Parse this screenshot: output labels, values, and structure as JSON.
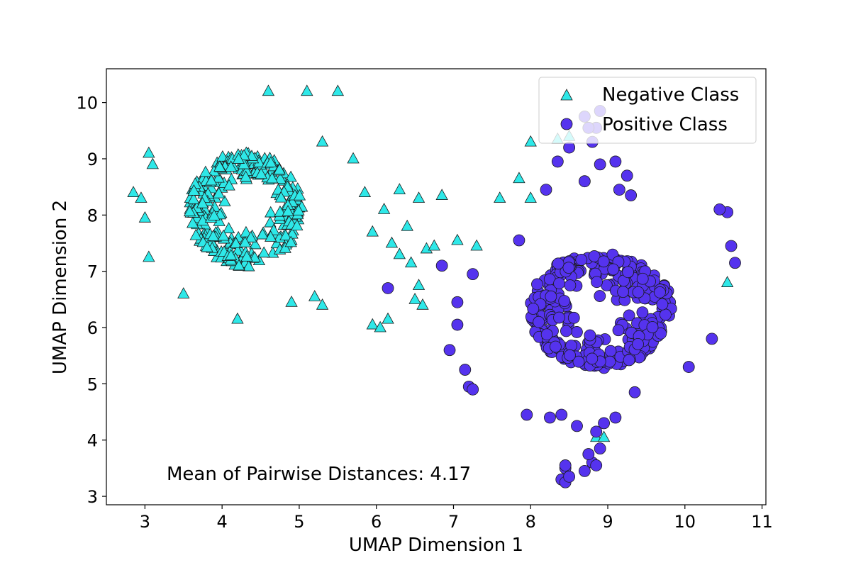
{
  "chart_data": {
    "type": "scatter",
    "title": "",
    "xlabel": "UMAP Dimension 1",
    "ylabel": "UMAP Dimension 2",
    "xlim": [
      2.5,
      11.05
    ],
    "ylim": [
      2.85,
      10.6
    ],
    "xticks": [
      3,
      4,
      5,
      6,
      7,
      8,
      9,
      10,
      11
    ],
    "yticks": [
      3,
      4,
      5,
      6,
      7,
      8,
      9,
      10
    ],
    "xtick_labels": [
      "3",
      "4",
      "5",
      "6",
      "7",
      "8",
      "9",
      "10",
      "11"
    ],
    "ytick_labels": [
      "3",
      "4",
      "5",
      "6",
      "7",
      "8",
      "9",
      "10"
    ],
    "grid": false,
    "legend_position": "top-right",
    "annotation": "Mean of Pairwise Distances: 4.17",
    "series": [
      {
        "name": "Negative Class",
        "marker": "triangle",
        "color": "#2ee8e8",
        "edge": "#1a1a1a",
        "cluster": {
          "center": [
            4.3,
            8.1
          ],
          "spread": [
            0.75,
            1.05
          ],
          "count": 300,
          "seed": 11
        },
        "extra_points": [
          [
            5.5,
            10.2
          ],
          [
            5.1,
            10.2
          ],
          [
            4.6,
            10.2
          ],
          [
            3.05,
            9.1
          ],
          [
            3.1,
            8.9
          ],
          [
            5.7,
            9.0
          ],
          [
            5.3,
            9.3
          ],
          [
            5.85,
            8.4
          ],
          [
            6.1,
            8.1
          ],
          [
            6.3,
            8.45
          ],
          [
            6.55,
            8.3
          ],
          [
            6.85,
            8.35
          ],
          [
            6.4,
            7.8
          ],
          [
            6.2,
            7.5
          ],
          [
            5.95,
            7.7
          ],
          [
            6.3,
            7.3
          ],
          [
            6.45,
            7.15
          ],
          [
            6.65,
            7.4
          ],
          [
            6.75,
            7.45
          ],
          [
            6.55,
            6.75
          ],
          [
            6.6,
            6.4
          ],
          [
            6.15,
            6.15
          ],
          [
            5.95,
            6.05
          ],
          [
            6.05,
            6.0
          ],
          [
            6.5,
            6.5
          ],
          [
            7.05,
            7.55
          ],
          [
            7.3,
            7.45
          ],
          [
            7.6,
            8.3
          ],
          [
            7.85,
            8.65
          ],
          [
            8.0,
            8.3
          ],
          [
            8.0,
            9.3
          ],
          [
            8.35,
            9.35
          ],
          [
            8.5,
            9.4
          ],
          [
            10.55,
            6.8
          ],
          [
            8.85,
            4.05
          ],
          [
            8.95,
            4.05
          ],
          [
            2.85,
            8.4
          ],
          [
            2.95,
            8.3
          ],
          [
            3.0,
            7.95
          ],
          [
            3.05,
            7.25
          ],
          [
            3.5,
            6.6
          ],
          [
            4.2,
            6.15
          ],
          [
            4.9,
            6.45
          ],
          [
            5.3,
            6.4
          ],
          [
            5.2,
            6.55
          ]
        ]
      },
      {
        "name": "Positive Class",
        "marker": "circle",
        "color": "#5533ee",
        "edge": "#1a1a1a",
        "cluster": {
          "center": [
            8.9,
            6.3
          ],
          "spread": [
            0.95,
            1.05
          ],
          "count": 370,
          "seed": 29
        },
        "extra_points": [
          [
            8.5,
            9.2
          ],
          [
            8.35,
            8.95
          ],
          [
            8.8,
            9.3
          ],
          [
            8.85,
            9.55
          ],
          [
            8.9,
            9.85
          ],
          [
            8.7,
            9.75
          ],
          [
            8.75,
            9.55
          ],
          [
            8.2,
            8.45
          ],
          [
            8.9,
            8.9
          ],
          [
            9.1,
            8.95
          ],
          [
            8.7,
            8.6
          ],
          [
            9.15,
            8.45
          ],
          [
            9.25,
            8.7
          ],
          [
            9.3,
            8.35
          ],
          [
            7.85,
            7.55
          ],
          [
            7.25,
            6.95
          ],
          [
            6.85,
            7.1
          ],
          [
            7.05,
            6.45
          ],
          [
            7.05,
            6.05
          ],
          [
            6.95,
            5.6
          ],
          [
            7.15,
            5.25
          ],
          [
            7.2,
            4.95
          ],
          [
            7.25,
            4.9
          ],
          [
            8.45,
            3.5
          ],
          [
            8.4,
            3.3
          ],
          [
            8.45,
            3.25
          ],
          [
            8.5,
            3.35
          ],
          [
            8.7,
            3.45
          ],
          [
            8.8,
            3.6
          ],
          [
            8.9,
            3.85
          ],
          [
            8.85,
            4.15
          ],
          [
            8.6,
            4.25
          ],
          [
            8.4,
            4.45
          ],
          [
            8.25,
            4.4
          ],
          [
            7.95,
            4.45
          ],
          [
            8.45,
            3.55
          ],
          [
            8.75,
            3.75
          ],
          [
            8.85,
            3.55
          ],
          [
            6.15,
            6.7
          ],
          [
            10.05,
            5.3
          ],
          [
            10.35,
            5.8
          ],
          [
            10.6,
            7.45
          ],
          [
            10.65,
            7.15
          ],
          [
            10.55,
            8.05
          ],
          [
            10.45,
            8.1
          ],
          [
            9.35,
            4.85
          ],
          [
            9.1,
            4.4
          ],
          [
            8.95,
            4.3
          ]
        ]
      }
    ]
  }
}
